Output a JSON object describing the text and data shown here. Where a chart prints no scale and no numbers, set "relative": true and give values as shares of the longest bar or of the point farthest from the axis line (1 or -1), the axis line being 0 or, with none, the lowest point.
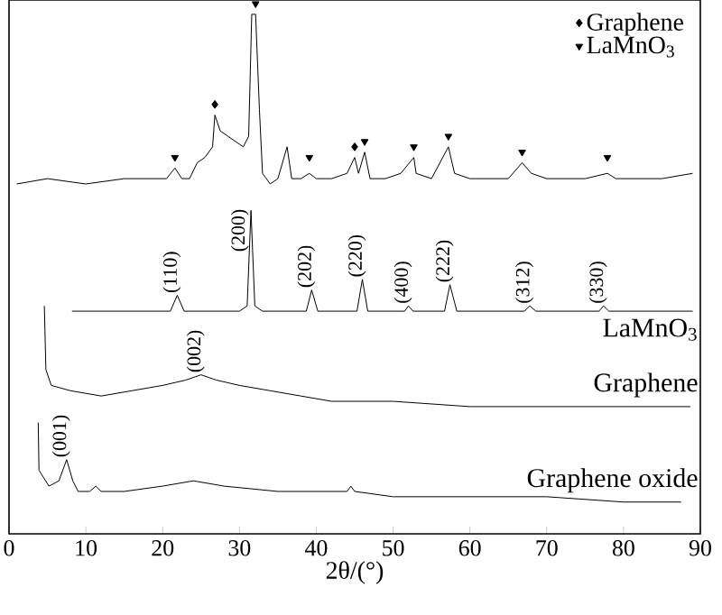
{
  "chart_data": {
    "type": "line",
    "relative": true,
    "xlabel": "2θ/(°)",
    "xlim": [
      0,
      90
    ],
    "xticks": [
      0,
      10,
      20,
      30,
      40,
      50,
      60,
      70,
      80,
      90
    ],
    "tick_labels": "x",
    "legend": "top right",
    "series": [
      {
        "color": "#000000",
        "x": [
          1,
          5,
          10,
          15,
          18,
          20.5,
          21.6,
          22.5,
          23.5,
          24.5,
          25.5,
          26.5,
          26.8,
          27.5,
          28.5,
          29.5,
          30.5,
          31.2,
          31.6,
          32.1,
          32.6,
          33,
          34,
          35,
          36.2,
          36.8,
          38,
          39.1,
          40,
          42,
          44,
          45,
          45.5,
          46.3,
          47,
          49,
          51,
          52.7,
          53,
          55,
          57.2,
          58,
          60,
          65,
          66.8,
          68,
          70,
          75,
          77.9,
          79,
          85,
          89
        ],
        "values": [
          0.66,
          0.67,
          0.66,
          0.67,
          0.67,
          0.67,
          0.69,
          0.67,
          0.67,
          0.7,
          0.71,
          0.73,
          0.79,
          0.76,
          0.75,
          0.74,
          0.73,
          0.75,
          0.98,
          0.98,
          0.8,
          0.68,
          0.66,
          0.67,
          0.73,
          0.67,
          0.67,
          0.68,
          0.67,
          0.67,
          0.68,
          0.71,
          0.68,
          0.72,
          0.67,
          0.67,
          0.68,
          0.71,
          0.68,
          0.67,
          0.73,
          0.68,
          0.67,
          0.67,
          0.7,
          0.68,
          0.67,
          0.67,
          0.68,
          0.67,
          0.67,
          0.68
        ]
      },
      {
        "name": "LaMnO$_{3}$",
        "color": "#000000",
        "x": [
          8.2,
          15,
          21,
          21.9,
          22.8,
          30,
          31,
          31.5,
          32,
          33,
          38.7,
          39.4,
          40.2,
          45.3,
          46,
          46.7,
          51.5,
          52,
          52.6,
          56.7,
          57.4,
          58.3,
          67.1,
          67.8,
          68.6,
          76.8,
          77.4,
          78.1,
          89
        ],
        "values": [
          0.42,
          0.42,
          0.42,
          0.45,
          0.42,
          0.42,
          0.43,
          0.61,
          0.43,
          0.42,
          0.42,
          0.46,
          0.42,
          0.42,
          0.48,
          0.42,
          0.42,
          0.43,
          0.42,
          0.42,
          0.47,
          0.42,
          0.42,
          0.43,
          0.42,
          0.42,
          0.43,
          0.42,
          0.42
        ]
      },
      {
        "name": "Graphene",
        "color": "#000000",
        "x": [
          4.6,
          4.8,
          5.5,
          8,
          12,
          16,
          20,
          23,
          25,
          27,
          30,
          34,
          38,
          42,
          50,
          60,
          70,
          80,
          88.7
        ],
        "values": [
          0.43,
          0.31,
          0.28,
          0.27,
          0.26,
          0.27,
          0.28,
          0.29,
          0.3,
          0.29,
          0.28,
          0.27,
          0.26,
          0.25,
          0.25,
          0.24,
          0.24,
          0.24,
          0.24
        ]
      },
      {
        "name": "Graphene oxide",
        "color": "#000000",
        "x": [
          3.8,
          3.9,
          5.2,
          6.5,
          7.5,
          8.3,
          9,
          10.5,
          11.3,
          12,
          15,
          20,
          24,
          28,
          35,
          40,
          44,
          44.5,
          45,
          50,
          60,
          70,
          80,
          87.5
        ],
        "values": [
          0.21,
          0.12,
          0.09,
          0.1,
          0.14,
          0.1,
          0.08,
          0.08,
          0.09,
          0.08,
          0.08,
          0.09,
          0.1,
          0.09,
          0.08,
          0.08,
          0.08,
          0.09,
          0.08,
          0.07,
          0.07,
          0.07,
          0.06,
          0.06
        ]
      },
      {
        "type": "scatter",
        "name": "Graphene",
        "marker": "diamond",
        "color": "#000000",
        "x": [
          26.8,
          45
        ],
        "values": [
          0.81,
          0.73
        ]
      },
      {
        "type": "scatter",
        "name": "LaMnO$_{3}$",
        "marker": "triangle",
        "color": "#000000",
        "x": [
          21.6,
          32.1,
          39.1,
          46.3,
          52.7,
          57.2,
          66.8,
          77.9
        ],
        "values": [
          0.71,
          1.0,
          0.71,
          0.74,
          0.73,
          0.75,
          0.72,
          0.71
        ]
      }
    ],
    "annotations": [
      {
        "text": "(110)",
        "x": 21.9,
        "y": 0.45
      },
      {
        "text": "(200)",
        "x": 31.5,
        "y": 0.61
      },
      {
        "text": "(202)",
        "x": 39.4,
        "y": 0.46
      },
      {
        "text": "(220)",
        "x": 46,
        "y": 0.48
      },
      {
        "text": "(400)",
        "x": 52,
        "y": 0.43
      },
      {
        "text": "(222)",
        "x": 57.4,
        "y": 0.47
      },
      {
        "text": "(312)",
        "x": 67.8,
        "y": 0.43
      },
      {
        "text": "(330)",
        "x": 77.4,
        "y": 0.43
      },
      {
        "text": "(002)",
        "x": 25,
        "y": 0.3
      },
      {
        "text": "(001)",
        "x": 7.5,
        "y": 0.14
      }
    ]
  }
}
